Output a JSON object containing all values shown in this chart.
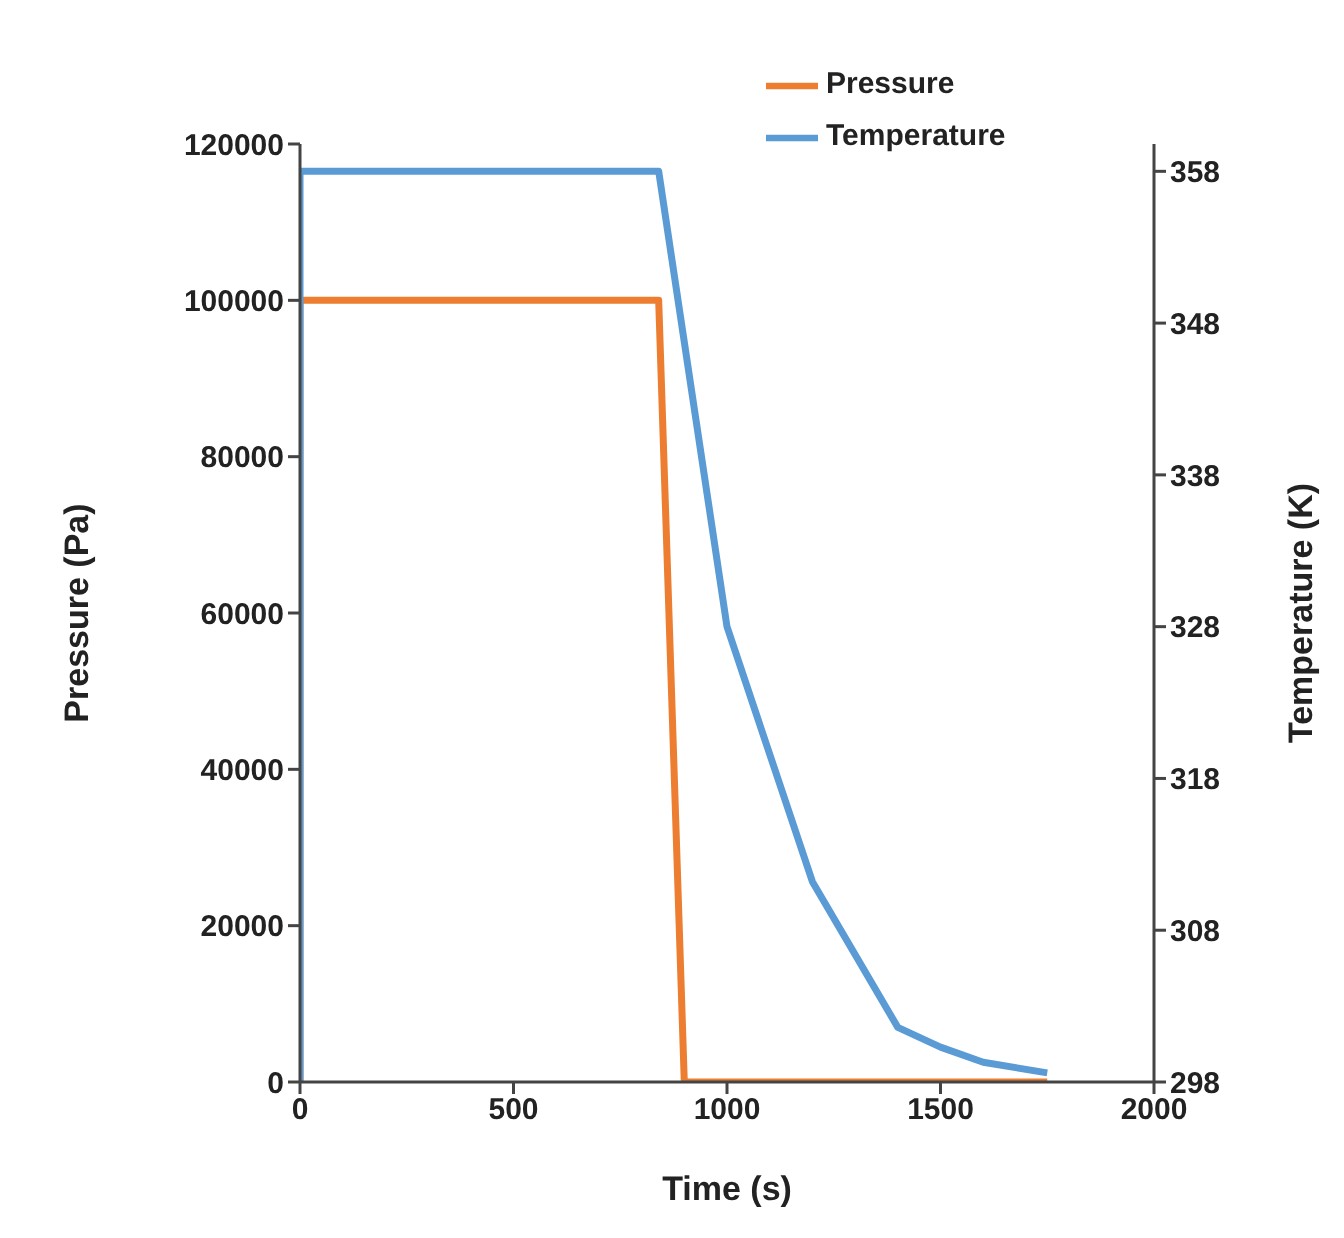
{
  "chart_data": {
    "type": "line",
    "xlabel": "Time (s)",
    "ylabel": "Pressure (Pa)",
    "y2label": "Temperature (K)",
    "xlim": [
      0,
      2000
    ],
    "xticks": [
      0,
      500,
      1000,
      1500,
      2000
    ],
    "ylim": [
      0,
      120000
    ],
    "yticks": [
      0,
      20000,
      40000,
      60000,
      80000,
      100000,
      120000
    ],
    "y2lim": [
      298,
      359.8
    ],
    "y2ticks": [
      298,
      308,
      318,
      328,
      338,
      348,
      358
    ],
    "grid": false,
    "legend": "top right",
    "marker": "none",
    "line_style": "solid",
    "series": [
      {
        "name": "Pressure",
        "color": "#ed7d31",
        "x": [
          0,
          0,
          840,
          900,
          1750
        ],
        "values": [
          0,
          100000,
          100000,
          0,
          0
        ]
      },
      {
        "name": "Temperature",
        "color": "#5b9bd5",
        "axis": "y2",
        "x": [
          0,
          0,
          840,
          1000,
          1200,
          1400,
          1500,
          1600,
          1750
        ],
        "values": [
          298,
          358,
          358,
          328,
          311.2,
          301.6,
          300.3,
          299.3,
          298.6
        ]
      }
    ]
  }
}
